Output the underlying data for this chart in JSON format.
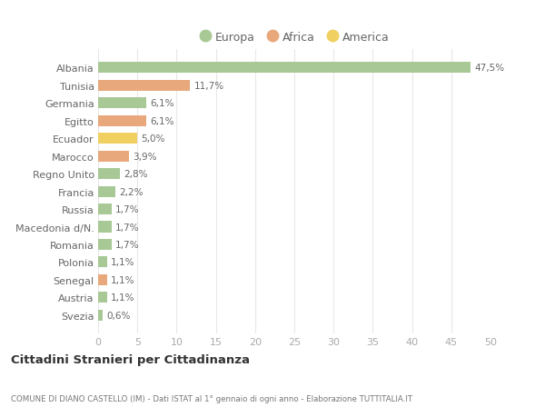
{
  "categories": [
    "Albania",
    "Tunisia",
    "Germania",
    "Egitto",
    "Ecuador",
    "Marocco",
    "Regno Unito",
    "Francia",
    "Russia",
    "Macedonia d/N.",
    "Romania",
    "Polonia",
    "Senegal",
    "Austria",
    "Svezia"
  ],
  "values": [
    47.5,
    11.7,
    6.1,
    6.1,
    5.0,
    3.9,
    2.8,
    2.2,
    1.7,
    1.7,
    1.7,
    1.1,
    1.1,
    1.1,
    0.6
  ],
  "labels": [
    "47,5%",
    "11,7%",
    "6,1%",
    "6,1%",
    "5,0%",
    "3,9%",
    "2,8%",
    "2,2%",
    "1,7%",
    "1,7%",
    "1,7%",
    "1,1%",
    "1,1%",
    "1,1%",
    "0,6%"
  ],
  "continents": [
    "Europa",
    "Africa",
    "Europa",
    "Africa",
    "America",
    "Africa",
    "Europa",
    "Europa",
    "Europa",
    "Europa",
    "Europa",
    "Europa",
    "Africa",
    "Europa",
    "Europa"
  ],
  "colors": {
    "Europa": "#a8c896",
    "Africa": "#e8a87c",
    "America": "#f0d060"
  },
  "title": "Cittadini Stranieri per Cittadinanza",
  "subtitle": "COMUNE DI DIANO CASTELLO (IM) - Dati ISTAT al 1° gennaio di ogni anno - Elaborazione TUTTITALIA.IT",
  "xlim": [
    0,
    50
  ],
  "xticks": [
    0,
    5,
    10,
    15,
    20,
    25,
    30,
    35,
    40,
    45,
    50
  ],
  "background_color": "#ffffff",
  "grid_color": "#e8e8e8"
}
